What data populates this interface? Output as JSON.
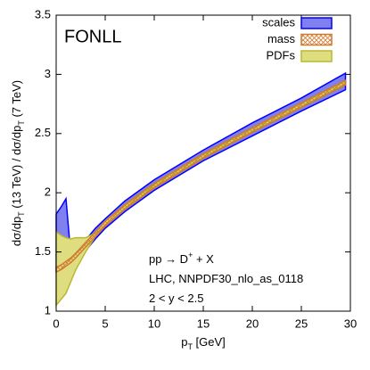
{
  "chart_data": {
    "type": "band",
    "title": "FONLL",
    "xlabel": [
      "p",
      "T",
      " [GeV]"
    ],
    "ylabel": [
      "dσ/dp",
      "T",
      " (13 TeV) / dσ/dp",
      "T",
      " (7 TeV)"
    ],
    "annotations": [
      [
        "pp → D",
        "+",
        " + X"
      ],
      [
        "LHC, NNPDF30_nlo_as_0118"
      ],
      [
        "2 < y < 2.5"
      ]
    ],
    "x": [
      0,
      0.5,
      1,
      1.5,
      2,
      3,
      4,
      5,
      7,
      10,
      15,
      20,
      25,
      29.5
    ],
    "series": [
      {
        "name": "scales",
        "color": "#0000ff",
        "fill": "#8080f0",
        "lower": [
          1.33,
          1.34,
          1.36,
          1.38,
          1.42,
          1.51,
          1.61,
          1.7,
          1.84,
          2.02,
          2.27,
          2.48,
          2.69,
          2.87
        ],
        "upper": [
          1.82,
          1.88,
          1.95,
          1.47,
          1.5,
          1.6,
          1.7,
          1.78,
          1.93,
          2.11,
          2.36,
          2.59,
          2.8,
          3.01
        ]
      },
      {
        "name": "PDFs",
        "color": "#b8b830",
        "fill": "#dede80",
        "lower": [
          1.05,
          1.1,
          1.15,
          1.25,
          1.35,
          1.5,
          1.63,
          1.72,
          1.87,
          2.05,
          2.3,
          2.52,
          2.73,
          2.92
        ],
        "upper": [
          1.67,
          1.64,
          1.62,
          1.61,
          1.62,
          1.62,
          1.66,
          1.76,
          1.89,
          2.07,
          2.32,
          2.54,
          2.75,
          2.94
        ]
      },
      {
        "name": "mass",
        "color": "#d07a30",
        "fill": "url(#hatch)",
        "lower": [
          1.33,
          1.35,
          1.38,
          1.41,
          1.45,
          1.54,
          1.63,
          1.72,
          1.86,
          2.04,
          2.29,
          2.51,
          2.72,
          2.91
        ],
        "upper": [
          1.37,
          1.39,
          1.42,
          1.45,
          1.49,
          1.58,
          1.67,
          1.76,
          1.9,
          2.08,
          2.33,
          2.55,
          2.76,
          2.95
        ]
      }
    ],
    "legend_order": [
      0,
      2,
      1
    ],
    "xlim": [
      0,
      30
    ],
    "xticks": [
      0,
      5,
      10,
      15,
      20,
      25,
      30
    ],
    "ylim": [
      1,
      3.5
    ],
    "yticks": [
      1,
      1.5,
      2,
      2.5,
      3,
      3.5
    ]
  }
}
